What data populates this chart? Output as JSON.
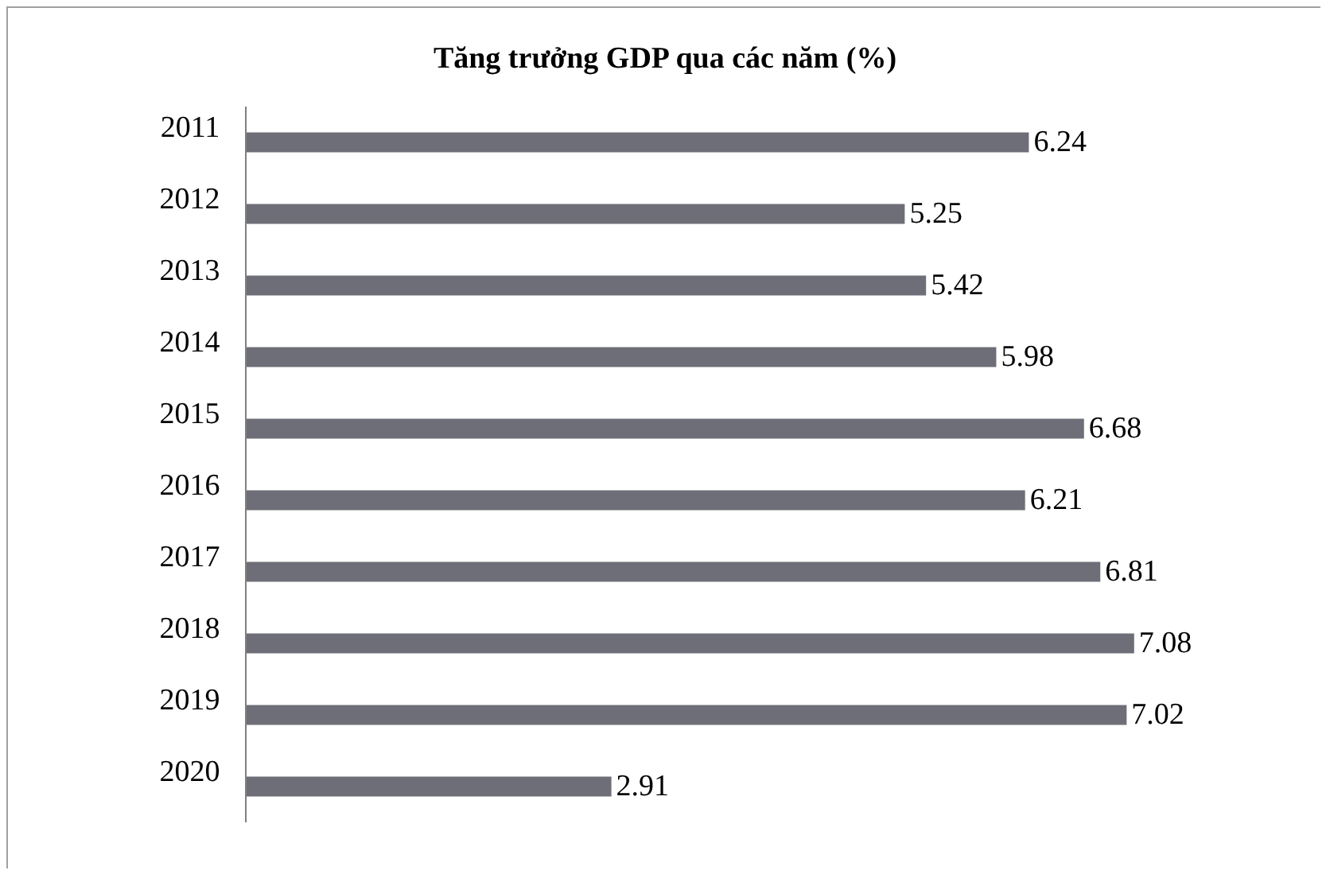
{
  "chart_data": {
    "type": "bar",
    "orientation": "horizontal",
    "title": "Tăng trưởng GDP qua các năm (%)",
    "categories": [
      "2011",
      "2012",
      "2013",
      "2014",
      "2015",
      "2016",
      "2017",
      "2018",
      "2019",
      "2020"
    ],
    "values": [
      6.24,
      5.25,
      5.42,
      5.98,
      6.68,
      6.21,
      6.81,
      7.08,
      7.02,
      2.91
    ],
    "color": "#6e6e78",
    "data_labels": true,
    "tick_labels": "y"
  }
}
